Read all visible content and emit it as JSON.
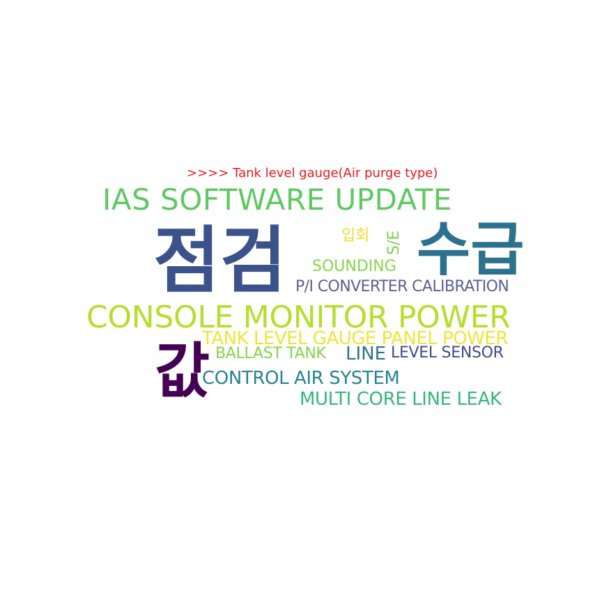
{
  "title": {
    "text": ">>>> Tank level gauge(Air purge type)",
    "color": "#e8191f"
  },
  "words": {
    "ias": {
      "text": "IAS SOFTWARE UPDATE",
      "color": "#5ec962"
    },
    "jeomgeom": {
      "text": "점검",
      "color": "#3b528b"
    },
    "ipho": {
      "text": "입회",
      "color": "#f2dc2a"
    },
    "se": {
      "text": "S/E",
      "color": "#7ad151"
    },
    "sugeup": {
      "text": "수급",
      "color": "#2c728e"
    },
    "sounding": {
      "text": "SOUNDING",
      "color": "#86d549"
    },
    "pi": {
      "text": "P/I CONVERTER CALIBRATION",
      "color": "#5b5f95"
    },
    "console": {
      "text": "CONSOLE MONITOR POWER",
      "color": "#b5de2b"
    },
    "tank": {
      "text": "TANK LEVEL GAUGE PANEL POWER",
      "color": "#f3e337"
    },
    "gap": {
      "text": "값",
      "color": "#440154"
    },
    "ballast": {
      "text": "BALLAST TANK",
      "color": "#84d44b"
    },
    "line": {
      "text": "LINE",
      "color": "#2d708e"
    },
    "level": {
      "text": "LEVEL SENSOR",
      "color": "#3f4a8a"
    },
    "control": {
      "text": "CONTROL AIR SYSTEM",
      "color": "#26838f"
    },
    "multi": {
      "text": "MULTI CORE LINE LEAK",
      "color": "#35b779"
    }
  }
}
